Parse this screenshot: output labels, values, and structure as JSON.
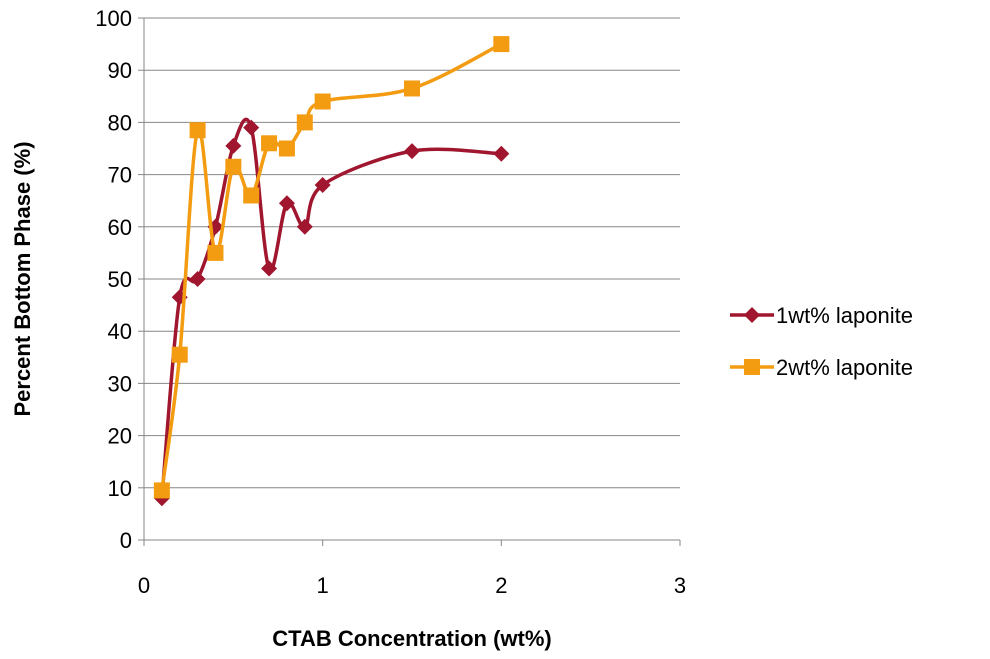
{
  "chart_data": {
    "type": "line",
    "title": "",
    "xlabel": "CTAB Concentration (wt%)",
    "ylabel": "Percent Bottom Phase (%)",
    "xlim": [
      0,
      3
    ],
    "ylim": [
      0,
      100
    ],
    "x_ticks": [
      0,
      1,
      2,
      3
    ],
    "y_ticks": [
      0,
      10,
      20,
      30,
      40,
      50,
      60,
      70,
      80,
      90,
      100
    ],
    "grid": "horizontal",
    "legend_position": "right",
    "smooth": true,
    "series": [
      {
        "name": "1wt% laponite",
        "color": "#a0162f",
        "marker": "diamond",
        "x": [
          0.1,
          0.2,
          0.3,
          0.4,
          0.5,
          0.6,
          0.7,
          0.8,
          0.9,
          1.0,
          1.5,
          2.0
        ],
        "y": [
          8,
          46.5,
          50,
          60,
          75.5,
          79,
          52,
          64.5,
          60,
          68,
          74.5,
          74
        ]
      },
      {
        "name": "2wt% laponite",
        "color": "#f39c12",
        "marker": "square",
        "x": [
          0.1,
          0.2,
          0.3,
          0.4,
          0.5,
          0.6,
          0.7,
          0.8,
          0.9,
          1.0,
          1.5,
          2.0
        ],
        "y": [
          9.5,
          35.5,
          78.5,
          55,
          71.5,
          66,
          76,
          75,
          80,
          84,
          86.5,
          95
        ]
      }
    ]
  }
}
